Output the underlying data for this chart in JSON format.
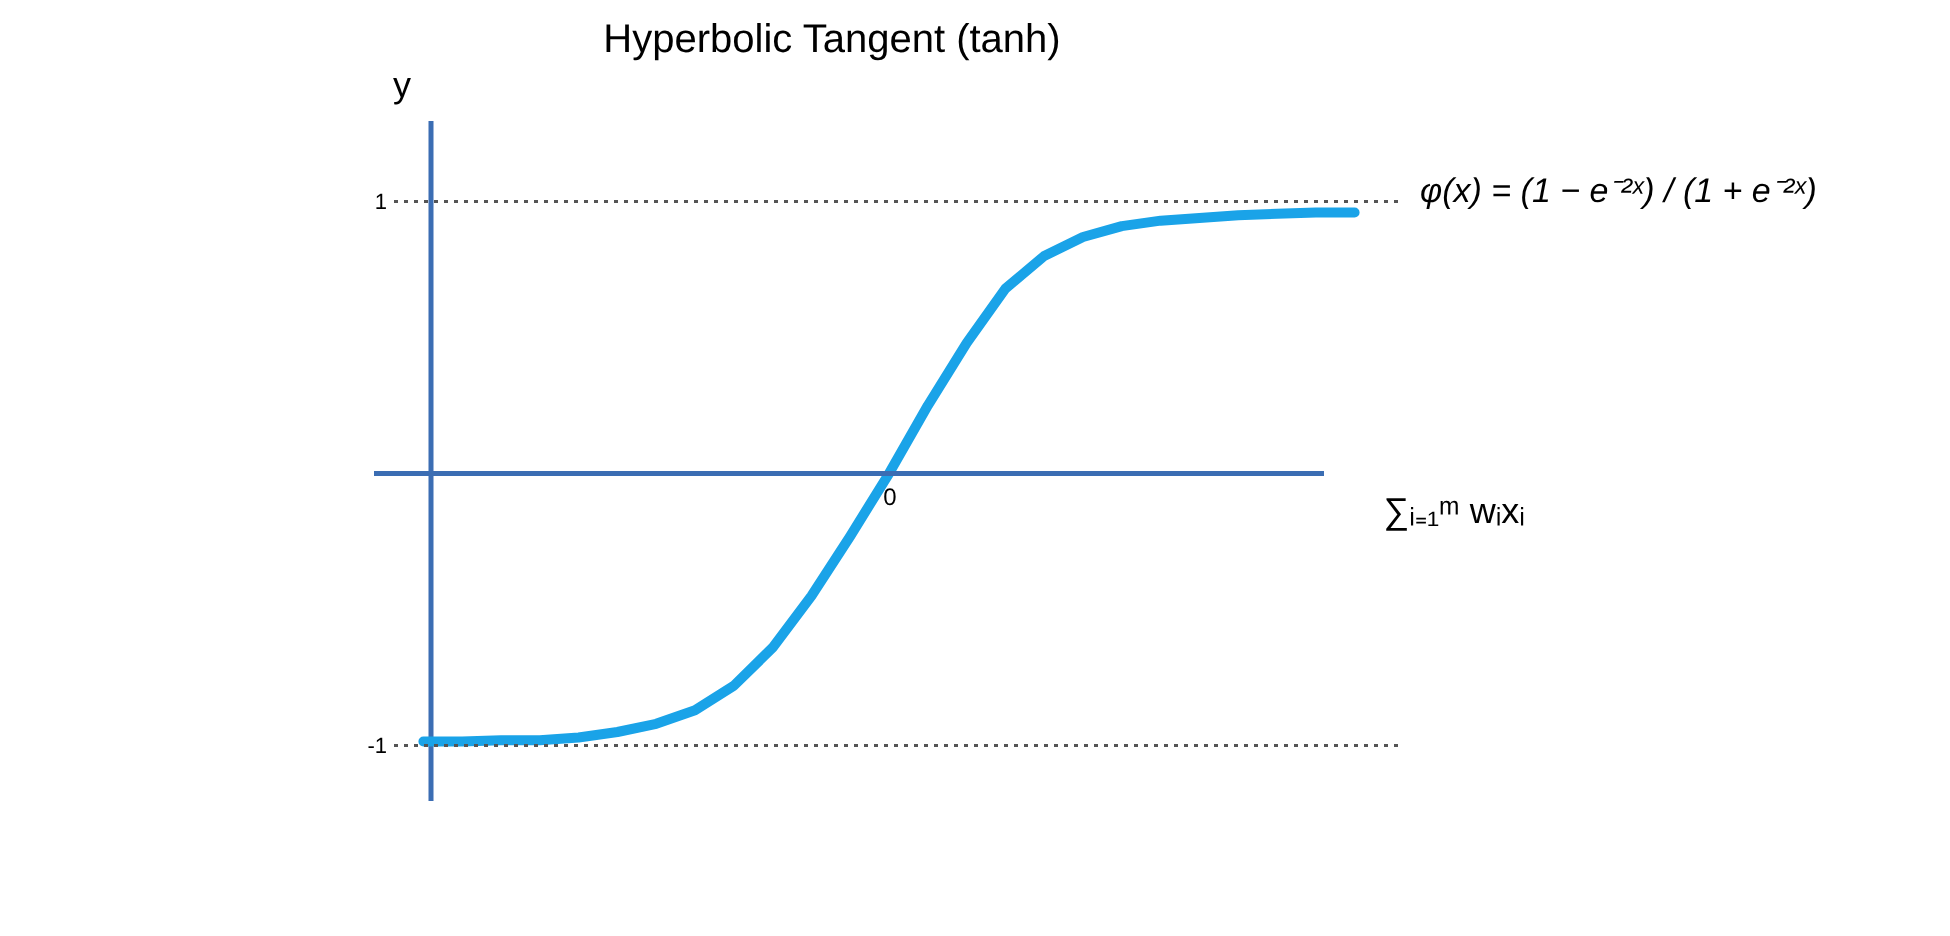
{
  "chart_data": {
    "type": "line",
    "title": "Hyperbolic Tangent (tanh)",
    "xlabel": "∑ᵢ₌₁ᵐ wᵢxᵢ",
    "ylabel": "y",
    "annotations": [
      "φ(x) = (1 − e⁻²ˣ) / (1 + e⁻²ˣ)"
    ],
    "categories": [
      null,
      null,
      null,
      null,
      null,
      null,
      null,
      null,
      null,
      null,
      null,
      null,
      "0",
      null,
      null,
      null,
      null,
      null,
      null,
      null,
      null,
      null,
      null,
      null,
      null
    ],
    "series": [
      {
        "color": "#1aa3e8",
        "values": [
          -0.985,
          -0.985,
          -0.98,
          -0.98,
          -0.97,
          -0.95,
          -0.92,
          -0.87,
          -0.78,
          -0.64,
          -0.45,
          -0.23,
          0,
          0.25,
          0.48,
          0.68,
          0.8,
          0.87,
          0.91,
          0.93,
          0.94,
          0.95,
          0.955,
          0.96,
          0.96
        ]
      }
    ],
    "ylim": [
      -1.2,
      1.3
    ],
    "yticks": [
      -1,
      1
    ],
    "ref_lines": [
      {
        "axis": "y",
        "value": 0,
        "label": null,
        "color": "#3b6db3",
        "line_style": "solid"
      },
      {
        "axis": "y",
        "value": 1,
        "label": null,
        "color": "#555555",
        "line_style": "dotted"
      },
      {
        "axis": "y",
        "value": -1,
        "label": null,
        "color": "#555555",
        "line_style": "dotted"
      }
    ],
    "grid": false,
    "legend": false,
    "marker": "none",
    "line_style": "solid"
  }
}
